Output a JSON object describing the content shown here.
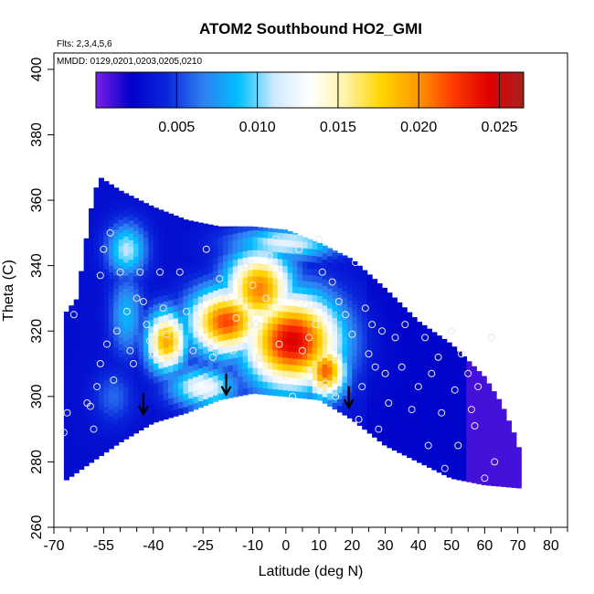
{
  "chart_data": {
    "type": "heatmap",
    "title": "ATOM2 Southbound HO2_GMI",
    "flights_note": "Flts: 2,3,4,5,6",
    "dates_note": "MMDD: 0129,0201,0203,0205,0210",
    "xlabel": "Latitude (deg N)",
    "ylabel": "Theta (C)",
    "xlim": [
      -70,
      85
    ],
    "ylim": [
      260,
      405
    ],
    "x_ticks": [
      -70,
      -55,
      -40,
      -25,
      -10,
      0,
      10,
      20,
      30,
      40,
      50,
      60,
      70,
      80
    ],
    "x_tick_labels": [
      "-70",
      "-55",
      "-40",
      "-25",
      "-10",
      "0",
      "10",
      "20",
      "30",
      "40",
      "50",
      "60",
      "70",
      "80"
    ],
    "x_minor_ticks": [
      -65,
      -60,
      -50,
      -45,
      -35,
      -30,
      -20,
      -15,
      -5,
      5,
      15,
      25,
      35,
      45,
      55,
      65,
      75,
      85
    ],
    "y_ticks": [
      260,
      280,
      300,
      320,
      340,
      360,
      380,
      400
    ],
    "y_tick_labels": [
      "260",
      "280",
      "300",
      "320",
      "340",
      "360",
      "380",
      "400"
    ],
    "colorbar": {
      "range": [
        0.0,
        0.0265
      ],
      "ticks": [
        0.005,
        0.01,
        0.015,
        0.02,
        0.025
      ],
      "tick_labels": [
        "0.005",
        "0.010",
        "0.015",
        "0.020",
        "0.025"
      ],
      "colors": [
        "#7b1fe8",
        "#0000c8",
        "#0a28dc",
        "#2f7ff2",
        "#00bfff",
        "#cfe9ff",
        "#ffffff",
        "#fff2a8",
        "#ffd600",
        "#ff9a00",
        "#ff3c00",
        "#e00000",
        "#a82020"
      ]
    },
    "field": {
      "lat_range": [
        -67,
        71
      ],
      "top_boundary": [
        [
          -67,
          325
        ],
        [
          -63,
          330
        ],
        [
          -60,
          350
        ],
        [
          -58,
          362
        ],
        [
          -56,
          367
        ],
        [
          -50,
          363
        ],
        [
          -40,
          358
        ],
        [
          -30,
          354
        ],
        [
          -20,
          352
        ],
        [
          -10,
          352
        ],
        [
          0,
          351
        ],
        [
          10,
          347
        ],
        [
          20,
          342
        ],
        [
          30,
          333
        ],
        [
          40,
          323
        ],
        [
          50,
          316
        ],
        [
          60,
          306
        ],
        [
          65,
          298
        ],
        [
          70,
          286
        ],
        [
          71,
          280
        ]
      ],
      "bottom_boundary": [
        [
          -67,
          274
        ],
        [
          -60,
          279
        ],
        [
          -50,
          286
        ],
        [
          -40,
          292
        ],
        [
          -30,
          295
        ],
        [
          -20,
          299
        ],
        [
          -10,
          301
        ],
        [
          0,
          300
        ],
        [
          10,
          299
        ],
        [
          20,
          293
        ],
        [
          30,
          285
        ],
        [
          40,
          280
        ],
        [
          50,
          275
        ],
        [
          60,
          273
        ],
        [
          71,
          272
        ]
      ],
      "hotspots": [
        {
          "lat": 2,
          "theta": 317,
          "value": 0.0245,
          "sx": 14,
          "sy": 14
        },
        {
          "lat": -18,
          "theta": 323,
          "value": 0.022,
          "sx": 11,
          "sy": 10
        },
        {
          "lat": -8,
          "theta": 333,
          "value": 0.0205,
          "sx": 10,
          "sy": 12
        },
        {
          "lat": -36,
          "theta": 317,
          "value": 0.0195,
          "sx": 6,
          "sy": 9
        },
        {
          "lat": 12,
          "theta": 308,
          "value": 0.0215,
          "sx": 6,
          "sy": 8
        },
        {
          "lat": -25,
          "theta": 303,
          "value": 0.013,
          "sx": 10,
          "sy": 6
        },
        {
          "lat": -48,
          "theta": 325,
          "value": 0.0085,
          "sx": 5,
          "sy": 12
        },
        {
          "lat": -52,
          "theta": 300,
          "value": 0.006,
          "sx": 6,
          "sy": 8
        },
        {
          "lat": -48,
          "theta": 345,
          "value": 0.011,
          "sx": 6,
          "sy": 8
        },
        {
          "lat": 0,
          "theta": 347,
          "value": 0.012,
          "sx": 16,
          "sy": 5
        }
      ],
      "background_value": 0.003,
      "north_value": 0.0025
    },
    "observations": [
      [
        -67,
        289
      ],
      [
        -66,
        295
      ],
      [
        -64,
        325
      ],
      [
        -60,
        298
      ],
      [
        -59,
        297
      ],
      [
        -58,
        290
      ],
      [
        -57,
        303
      ],
      [
        -56,
        310
      ],
      [
        -56,
        337
      ],
      [
        -55,
        345
      ],
      [
        -54,
        316
      ],
      [
        -53,
        350
      ],
      [
        -52,
        305
      ],
      [
        -51,
        320
      ],
      [
        -50,
        338
      ],
      [
        -48,
        326
      ],
      [
        -47,
        314
      ],
      [
        -46,
        310
      ],
      [
        -45,
        330
      ],
      [
        -44,
        338
      ],
      [
        -43,
        329
      ],
      [
        -42,
        322
      ],
      [
        -41,
        317
      ],
      [
        -40,
        313
      ],
      [
        -38,
        338
      ],
      [
        -37,
        327
      ],
      [
        -36,
        319
      ],
      [
        -34,
        312
      ],
      [
        -32,
        338
      ],
      [
        -30,
        326
      ],
      [
        -28,
        314
      ],
      [
        -26,
        323
      ],
      [
        -24,
        345
      ],
      [
        -22,
        312
      ],
      [
        -20,
        336
      ],
      [
        -18,
        330
      ],
      [
        -16,
        314
      ],
      [
        -15,
        324
      ],
      [
        -12,
        340
      ],
      [
        -11,
        322
      ],
      [
        -10,
        334
      ],
      [
        -9,
        322
      ],
      [
        -8,
        312
      ],
      [
        -6,
        330
      ],
      [
        -5,
        343
      ],
      [
        -3,
        348
      ],
      [
        -2,
        316
      ],
      [
        0,
        306
      ],
      [
        2,
        300
      ],
      [
        3,
        330
      ],
      [
        4,
        345
      ],
      [
        5,
        314
      ],
      [
        6,
        328
      ],
      [
        7,
        318
      ],
      [
        8,
        308
      ],
      [
        9,
        322
      ],
      [
        10,
        348
      ],
      [
        11,
        338
      ],
      [
        12,
        304
      ],
      [
        14,
        335
      ],
      [
        15,
        300
      ],
      [
        16,
        329
      ],
      [
        18,
        325
      ],
      [
        20,
        319
      ],
      [
        21,
        341
      ],
      [
        22,
        293
      ],
      [
        23,
        303
      ],
      [
        24,
        327
      ],
      [
        25,
        313
      ],
      [
        26,
        322
      ],
      [
        27,
        309
      ],
      [
        28,
        290
      ],
      [
        29,
        320
      ],
      [
        30,
        307
      ],
      [
        31,
        298
      ],
      [
        33,
        318
      ],
      [
        35,
        309
      ],
      [
        36,
        322
      ],
      [
        38,
        296
      ],
      [
        40,
        303
      ],
      [
        42,
        318
      ],
      [
        43,
        285
      ],
      [
        44,
        307
      ],
      [
        46,
        312
      ],
      [
        47,
        295
      ],
      [
        48,
        278
      ],
      [
        50,
        320
      ],
      [
        51,
        302
      ],
      [
        52,
        285
      ],
      [
        53,
        313
      ],
      [
        55,
        307
      ],
      [
        56,
        296
      ],
      [
        57,
        291
      ],
      [
        58,
        303
      ],
      [
        60,
        275
      ],
      [
        62,
        318
      ],
      [
        63,
        280
      ]
    ],
    "arrows": [
      {
        "lat": -43,
        "theta": 296
      },
      {
        "lat": -18,
        "theta": 302
      },
      {
        "lat": 19,
        "theta": 298
      }
    ]
  }
}
